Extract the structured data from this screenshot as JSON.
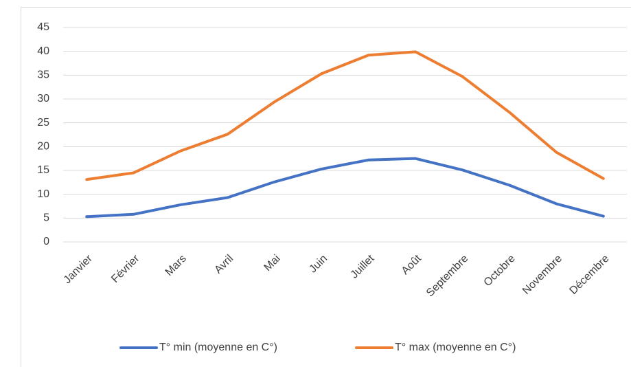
{
  "chart_data": {
    "type": "line",
    "categories": [
      "Janvier",
      "Février",
      "Mars",
      "Avril",
      "Mai",
      "Juin",
      "Juillet",
      "Août",
      "Septembre",
      "Octobre",
      "Novembre",
      "Décembre"
    ],
    "series": [
      {
        "name": "T° min (moyenne en C°)",
        "color": "#4472c4",
        "values": [
          5.3,
          5.8,
          7.8,
          9.3,
          12.6,
          15.3,
          17.2,
          17.5,
          15.1,
          11.9,
          8.0,
          5.4
        ]
      },
      {
        "name": "T° max (moyenne en C°)",
        "color": "#ed7d31",
        "values": [
          13.1,
          14.5,
          19.1,
          22.6,
          29.4,
          35.3,
          39.2,
          39.9,
          34.7,
          27.2,
          18.8,
          13.3
        ]
      }
    ],
    "ylim": [
      0,
      45
    ],
    "yticks": [
      0,
      5,
      10,
      15,
      20,
      25,
      30,
      35,
      40,
      45
    ],
    "grid": true,
    "legend": "bottom"
  }
}
